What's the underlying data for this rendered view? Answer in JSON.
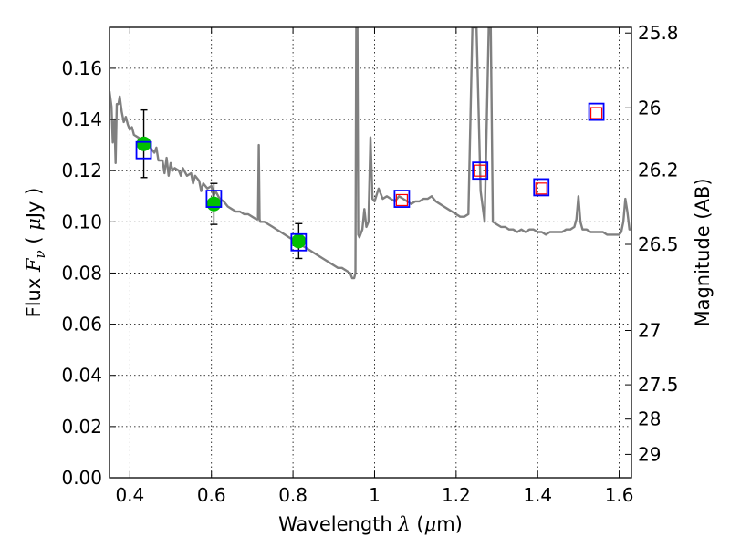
{
  "chart_data": {
    "type": "scatter",
    "xlabel_prefix": "Wavelength ",
    "xlabel_symbol": "λ",
    "xlabel_unit_open": " (",
    "xlabel_unit_mu": "μ",
    "xlabel_unit_close": "m)",
    "ylabel_prefix": "Flux ",
    "ylabel_symbol": "F",
    "ylabel_sub": "ν",
    "ylabel_unit_open": " ( ",
    "ylabel_unit_mu": "μ",
    "ylabel_unit_close": "Jy )",
    "y2label": "Magnitude (AB)",
    "xlim": [
      0.35,
      1.63
    ],
    "ylim": [
      0.0,
      0.176
    ],
    "grid": true,
    "x_ticks": [
      {
        "value": 0.4,
        "label": "0.4"
      },
      {
        "value": 0.6,
        "label": "0.6"
      },
      {
        "value": 0.8,
        "label": "0.8"
      },
      {
        "value": 1.0,
        "label": "1"
      },
      {
        "value": 1.2,
        "label": "1.2"
      },
      {
        "value": 1.4,
        "label": "1.4"
      },
      {
        "value": 1.6,
        "label": "1.6"
      }
    ],
    "y_ticks": [
      {
        "value": 0.0,
        "label": "0.00"
      },
      {
        "value": 0.02,
        "label": "0.02"
      },
      {
        "value": 0.04,
        "label": "0.04"
      },
      {
        "value": 0.06,
        "label": "0.06"
      },
      {
        "value": 0.08,
        "label": "0.08"
      },
      {
        "value": 0.1,
        "label": "0.10"
      },
      {
        "value": 0.12,
        "label": "0.12"
      },
      {
        "value": 0.14,
        "label": "0.14"
      },
      {
        "value": 0.16,
        "label": "0.16"
      }
    ],
    "y2_ticks": [
      {
        "value": 25.8,
        "label": "25.8"
      },
      {
        "value": 26.0,
        "label": "26"
      },
      {
        "value": 26.2,
        "label": "26.2"
      },
      {
        "value": 26.5,
        "label": "26.5"
      },
      {
        "value": 27.0,
        "label": "27"
      },
      {
        "value": 27.5,
        "label": "27.5"
      },
      {
        "value": 28.0,
        "label": "28"
      },
      {
        "value": 29.0,
        "label": "29"
      }
    ],
    "series": [
      {
        "kind": "line",
        "color": "#808080",
        "points": [
          [
            0.35,
            0.151
          ],
          [
            0.355,
            0.145
          ],
          [
            0.358,
            0.131
          ],
          [
            0.362,
            0.14
          ],
          [
            0.365,
            0.123
          ],
          [
            0.368,
            0.146
          ],
          [
            0.372,
            0.146
          ],
          [
            0.375,
            0.149
          ],
          [
            0.38,
            0.143
          ],
          [
            0.385,
            0.139
          ],
          [
            0.39,
            0.141
          ],
          [
            0.395,
            0.138
          ],
          [
            0.4,
            0.136
          ],
          [
            0.405,
            0.137
          ],
          [
            0.41,
            0.134
          ],
          [
            0.42,
            0.133
          ],
          [
            0.43,
            0.132
          ],
          [
            0.44,
            0.13
          ],
          [
            0.45,
            0.129
          ],
          [
            0.46,
            0.127
          ],
          [
            0.465,
            0.129
          ],
          [
            0.47,
            0.124
          ],
          [
            0.48,
            0.124
          ],
          [
            0.485,
            0.119
          ],
          [
            0.49,
            0.125
          ],
          [
            0.495,
            0.118
          ],
          [
            0.5,
            0.123
          ],
          [
            0.505,
            0.12
          ],
          [
            0.51,
            0.121
          ],
          [
            0.52,
            0.12
          ],
          [
            0.525,
            0.118
          ],
          [
            0.53,
            0.121
          ],
          [
            0.54,
            0.118
          ],
          [
            0.55,
            0.119
          ],
          [
            0.555,
            0.115
          ],
          [
            0.56,
            0.118
          ],
          [
            0.57,
            0.116
          ],
          [
            0.575,
            0.112
          ],
          [
            0.58,
            0.115
          ],
          [
            0.59,
            0.113
          ],
          [
            0.6,
            0.114
          ],
          [
            0.605,
            0.11
          ],
          [
            0.61,
            0.112
          ],
          [
            0.62,
            0.109
          ],
          [
            0.63,
            0.108
          ],
          [
            0.64,
            0.106
          ],
          [
            0.65,
            0.105
          ],
          [
            0.66,
            0.104
          ],
          [
            0.67,
            0.104
          ],
          [
            0.68,
            0.103
          ],
          [
            0.69,
            0.103
          ],
          [
            0.7,
            0.102
          ],
          [
            0.71,
            0.101
          ],
          [
            0.714,
            0.101
          ],
          [
            0.716,
            0.13
          ],
          [
            0.718,
            0.101
          ],
          [
            0.72,
            0.1
          ],
          [
            0.73,
            0.1
          ],
          [
            0.74,
            0.099
          ],
          [
            0.75,
            0.098
          ],
          [
            0.76,
            0.097
          ],
          [
            0.77,
            0.096
          ],
          [
            0.78,
            0.095
          ],
          [
            0.79,
            0.094
          ],
          [
            0.8,
            0.093
          ],
          [
            0.81,
            0.092
          ],
          [
            0.82,
            0.091
          ],
          [
            0.83,
            0.09
          ],
          [
            0.84,
            0.089
          ],
          [
            0.85,
            0.088
          ],
          [
            0.86,
            0.087
          ],
          [
            0.87,
            0.086
          ],
          [
            0.88,
            0.085
          ],
          [
            0.89,
            0.084
          ],
          [
            0.9,
            0.083
          ],
          [
            0.91,
            0.082
          ],
          [
            0.92,
            0.082
          ],
          [
            0.93,
            0.081
          ],
          [
            0.94,
            0.08
          ],
          [
            0.945,
            0.078
          ],
          [
            0.95,
            0.078
          ],
          [
            0.953,
            0.08
          ],
          [
            0.955,
            0.176
          ],
          [
            0.958,
            0.176
          ],
          [
            0.96,
            0.095
          ],
          [
            0.963,
            0.094
          ],
          [
            0.97,
            0.097
          ],
          [
            0.975,
            0.105
          ],
          [
            0.98,
            0.098
          ],
          [
            0.985,
            0.1
          ],
          [
            0.99,
            0.133
          ],
          [
            0.995,
            0.109
          ],
          [
            1.0,
            0.108
          ],
          [
            1.01,
            0.113
          ],
          [
            1.02,
            0.109
          ],
          [
            1.03,
            0.11
          ],
          [
            1.04,
            0.109
          ],
          [
            1.05,
            0.108
          ],
          [
            1.06,
            0.11
          ],
          [
            1.07,
            0.109
          ],
          [
            1.08,
            0.108
          ],
          [
            1.09,
            0.107
          ],
          [
            1.1,
            0.108
          ],
          [
            1.11,
            0.108
          ],
          [
            1.12,
            0.109
          ],
          [
            1.13,
            0.109
          ],
          [
            1.14,
            0.11
          ],
          [
            1.15,
            0.108
          ],
          [
            1.16,
            0.107
          ],
          [
            1.17,
            0.106
          ],
          [
            1.18,
            0.105
          ],
          [
            1.19,
            0.104
          ],
          [
            1.2,
            0.103
          ],
          [
            1.21,
            0.102
          ],
          [
            1.22,
            0.102
          ],
          [
            1.23,
            0.103
          ],
          [
            1.24,
            0.176
          ],
          [
            1.25,
            0.176
          ],
          [
            1.26,
            0.112
          ],
          [
            1.27,
            0.1
          ],
          [
            1.28,
            0.176
          ],
          [
            1.285,
            0.176
          ],
          [
            1.29,
            0.1
          ],
          [
            1.3,
            0.099
          ],
          [
            1.31,
            0.098
          ],
          [
            1.32,
            0.098
          ],
          [
            1.33,
            0.097
          ],
          [
            1.34,
            0.097
          ],
          [
            1.35,
            0.096
          ],
          [
            1.36,
            0.097
          ],
          [
            1.37,
            0.096
          ],
          [
            1.38,
            0.097
          ],
          [
            1.39,
            0.097
          ],
          [
            1.4,
            0.096
          ],
          [
            1.41,
            0.096
          ],
          [
            1.42,
            0.095
          ],
          [
            1.43,
            0.096
          ],
          [
            1.44,
            0.096
          ],
          [
            1.45,
            0.096
          ],
          [
            1.46,
            0.096
          ],
          [
            1.47,
            0.097
          ],
          [
            1.48,
            0.097
          ],
          [
            1.49,
            0.098
          ],
          [
            1.495,
            0.101
          ],
          [
            1.5,
            0.11
          ],
          [
            1.505,
            0.1
          ],
          [
            1.51,
            0.097
          ],
          [
            1.52,
            0.097
          ],
          [
            1.53,
            0.096
          ],
          [
            1.54,
            0.096
          ],
          [
            1.55,
            0.096
          ],
          [
            1.56,
            0.096
          ],
          [
            1.57,
            0.095
          ],
          [
            1.58,
            0.095
          ],
          [
            1.59,
            0.095
          ],
          [
            1.6,
            0.095
          ],
          [
            1.605,
            0.096
          ],
          [
            1.61,
            0.1
          ],
          [
            1.615,
            0.109
          ],
          [
            1.62,
            0.104
          ],
          [
            1.625,
            0.097
          ],
          [
            1.63,
            0.097
          ]
        ]
      },
      {
        "kind": "points",
        "marker": "circle",
        "color": "#00c000",
        "points": [
          {
            "x": 0.434,
            "y": 0.1305,
            "err": 0.0132
          },
          {
            "x": 0.606,
            "y": 0.107,
            "err": 0.008
          },
          {
            "x": 0.814,
            "y": 0.0925,
            "err": 0.0068
          }
        ]
      },
      {
        "kind": "points",
        "marker": "square",
        "color": "#0000ff",
        "points": [
          {
            "x": 0.434,
            "y": 0.128
          },
          {
            "x": 0.606,
            "y": 0.109
          },
          {
            "x": 0.814,
            "y": 0.092
          },
          {
            "x": 1.067,
            "y": 0.109
          },
          {
            "x": 1.259,
            "y": 0.12
          },
          {
            "x": 1.409,
            "y": 0.1135
          },
          {
            "x": 1.544,
            "y": 0.143
          }
        ]
      },
      {
        "kind": "points",
        "marker": "square-small",
        "color": "#ff0000",
        "points": [
          {
            "x": 1.067,
            "y": 0.1085
          },
          {
            "x": 1.259,
            "y": 0.12
          },
          {
            "x": 1.409,
            "y": 0.113
          },
          {
            "x": 1.544,
            "y": 0.1425
          }
        ]
      }
    ]
  }
}
